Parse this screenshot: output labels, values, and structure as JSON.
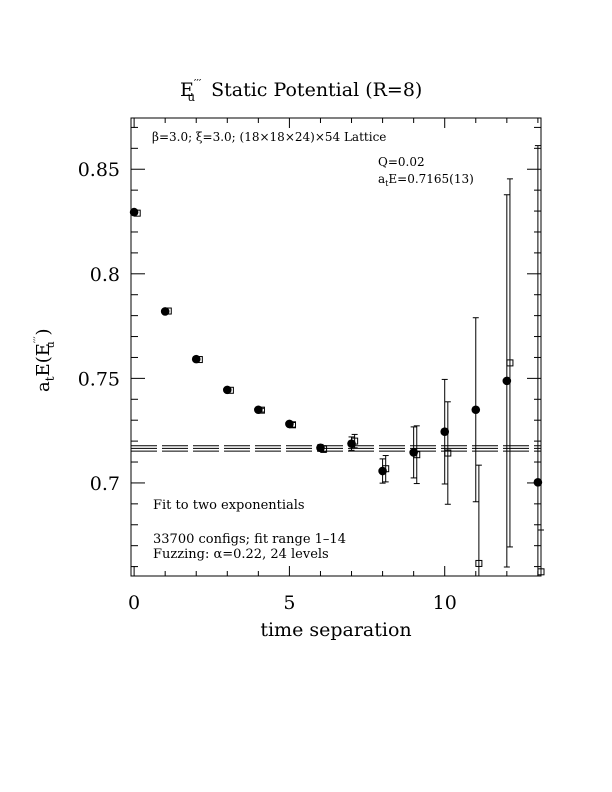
{
  "chart_data": {
    "type": "scatter",
    "title_main": "E",
    "title_sup": "′′′",
    "title_sub": "u",
    "title_rest": "Static Potential (R=8)",
    "xlabel": "time separation",
    "ylabel_main": "a",
    "ylabel_sub": "t",
    "ylabel_mid": "E(E",
    "ylabel_sup": "′′′",
    "ylabel_sub2": "u",
    "ylabel_end": " )",
    "xlim": [
      -0.1,
      13.1
    ],
    "ylim": [
      0.6555,
      0.8745
    ],
    "xticks": [
      0,
      5,
      10
    ],
    "xtick_labels": [
      "0",
      "5",
      "10"
    ],
    "yticks": [
      0.7,
      0.75,
      0.8,
      0.85
    ],
    "ytick_labels": [
      "0.7",
      "0.75",
      "0.8",
      "0.85"
    ],
    "lattice_text": "β=3.0; ξ=3.0; (18×18×24)×54 Lattice",
    "q_text": "Q=0.02",
    "energy_prefix": "a",
    "energy_sub": "t",
    "energy_rest": "E=0.7165(13)",
    "fit_text": "Fit to two exponentials",
    "configs_text": "33700 configs; fit range 1–14",
    "fuzzing_text": "Fuzzing: α=0.22, 24 levels",
    "fit": {
      "value": 0.7165,
      "error": 0.0013,
      "x_range": [
        -0.1,
        13.1
      ]
    },
    "series": [
      {
        "marker": "filled-circle",
        "x": [
          0,
          1,
          2,
          3,
          4,
          5,
          6,
          7,
          8,
          9,
          10,
          11,
          12,
          13
        ],
        "y": [
          0.8295,
          0.782,
          0.7592,
          0.7445,
          0.735,
          0.7282,
          0.7168,
          0.7188,
          0.7057,
          0.7146,
          0.7245,
          0.735,
          0.7488,
          0.7003
        ],
        "err": [
          0.0005,
          0.0005,
          0.0005,
          0.0007,
          0.0009,
          0.0011,
          0.0016,
          0.0032,
          0.0058,
          0.0122,
          0.025,
          0.044,
          0.089,
          0.161
        ]
      },
      {
        "marker": "open-square",
        "x": [
          0.1,
          1.1,
          2.1,
          3.1,
          4.1,
          5.1,
          6.1,
          7.1,
          8.1,
          9.1,
          10.1,
          11.1,
          12.1,
          13.1
        ],
        "y": [
          0.829,
          0.7822,
          0.759,
          0.7443,
          0.7348,
          0.7278,
          0.7162,
          0.72,
          0.7068,
          0.7135,
          0.7143,
          0.6615,
          0.7574,
          0.6575
        ],
        "err": [
          0.0005,
          0.0005,
          0.0005,
          0.0007,
          0.0009,
          0.0011,
          0.0016,
          0.0032,
          0.0063,
          0.0138,
          0.0245,
          0.047,
          0.088,
          0.02
        ]
      }
    ]
  }
}
